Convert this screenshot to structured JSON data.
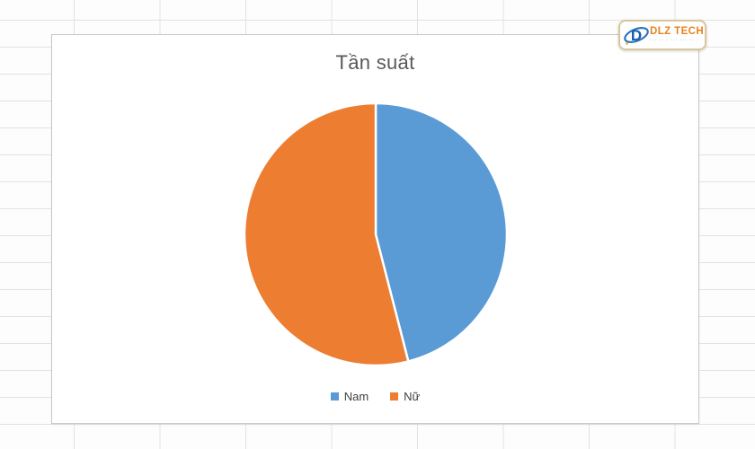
{
  "chart_data": {
    "type": "pie",
    "title": "Tần suất",
    "labels": [
      "Nam",
      "Nữ"
    ],
    "values": [
      46,
      54
    ],
    "colors": [
      "#5B9BD5",
      "#ED7D31"
    ],
    "start_angle_deg": 0,
    "direction": "clockwise",
    "legend_position": "bottom",
    "slice_border_color": "#FFFFFF",
    "title_color": "#595959",
    "legend_text_color": "#404040"
  },
  "watermark": {
    "brand": "DLZ TECH",
    "tagline": "··· ·· · ··· ··· ·· ·",
    "brand_color": "#E8821E",
    "icon_color": "#1B5FA8",
    "swoosh_color": "#2E74C4",
    "border_color": "#D9C79B"
  },
  "spreadsheet": {
    "gridline_color": "#E2E2E2",
    "chart_border_color": "#C9C9C9"
  }
}
